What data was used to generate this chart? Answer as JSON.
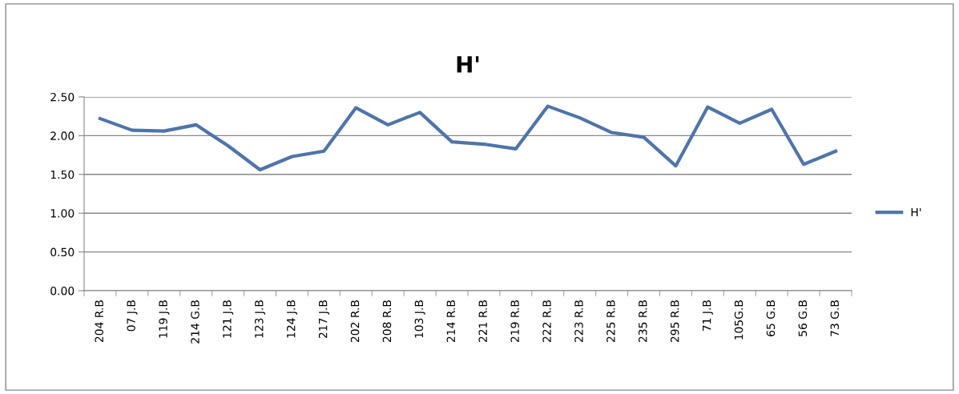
{
  "chart_data": {
    "type": "line",
    "title": "H'",
    "categories": [
      "204 R.B",
      "07 J.B",
      "119 J.B",
      "214 G.B",
      "121 J.B",
      "123 J.B",
      "124 J.B",
      "217 J.B",
      "202 R.B",
      "208 R.B",
      "103 J.B",
      "214 R.B",
      "221 R.B",
      "219 R.B",
      "222 R.B",
      "223 R.B",
      "225 R.B",
      "235 R.B",
      "295 R.B",
      "71 J.B",
      "105G.B",
      "65 G.B",
      "56 G.B",
      "73 G.B"
    ],
    "series": [
      {
        "name": "H'",
        "color": "#4f74a8",
        "values": [
          2.22,
          2.07,
          2.06,
          2.14,
          1.87,
          1.56,
          1.73,
          1.8,
          2.36,
          2.14,
          2.3,
          1.92,
          1.89,
          1.83,
          2.38,
          2.23,
          2.04,
          1.98,
          1.61,
          2.37,
          2.16,
          2.34,
          1.63,
          1.8
        ]
      }
    ],
    "ylim": [
      0,
      2.5
    ],
    "yticks": [
      {
        "value": 0,
        "label": "0.00"
      },
      {
        "value": 0.5,
        "label": "0.50"
      },
      {
        "value": 1,
        "label": "1.00"
      },
      {
        "value": 1.5,
        "label": "1.50"
      },
      {
        "value": 2,
        "label": "2.00"
      },
      {
        "value": 2.5,
        "label": "2.50"
      }
    ],
    "grid": "y",
    "legend": "right",
    "marker": "none",
    "line_style": "solid"
  }
}
